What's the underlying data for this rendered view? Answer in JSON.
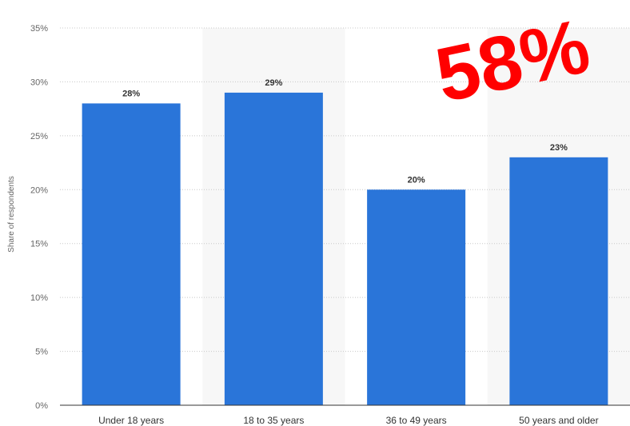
{
  "chart_data": {
    "type": "bar",
    "categories": [
      "Under 18 years",
      "18 to 35 years",
      "36 to 49 years",
      "50 years and older"
    ],
    "values": [
      28,
      29,
      20,
      23
    ],
    "value_labels": [
      "28%",
      "29%",
      "20%",
      "23%"
    ],
    "ylabel": "Share of respondents",
    "ylim": [
      0,
      35
    ],
    "yticks": [
      0,
      5,
      10,
      15,
      20,
      25,
      30,
      35
    ],
    "ytick_labels": [
      "0%",
      "5%",
      "10%",
      "15%",
      "20%",
      "25%",
      "30%",
      "35%"
    ],
    "grid": true,
    "bar_color": "#2a75d9"
  },
  "overlay": {
    "text": "58%",
    "color": "#ff0000"
  }
}
